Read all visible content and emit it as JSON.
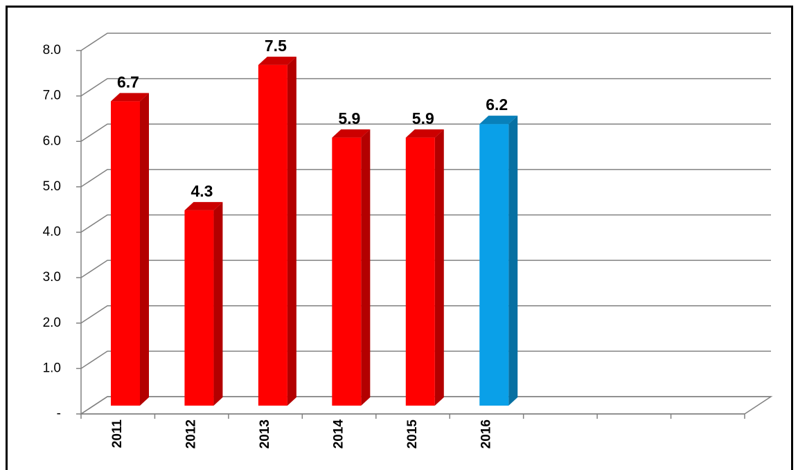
{
  "chart_data": {
    "type": "bar3d",
    "categories": [
      "2011",
      "2012",
      "2013",
      "2014",
      "2015",
      "2016",
      null,
      null,
      null
    ],
    "values": [
      6.7,
      4.3,
      7.5,
      5.9,
      5.9,
      6.2,
      null,
      null,
      null
    ],
    "colors": [
      "#ff0000",
      "#ff0000",
      "#ff0000",
      "#ff0000",
      "#ff0000",
      "#0aa0e8",
      null,
      null,
      null
    ],
    "ylim": [
      0,
      8
    ],
    "yticks": [
      {
        "value": 0,
        "label": "-"
      },
      {
        "value": 1,
        "label": "1.0"
      },
      {
        "value": 2,
        "label": "2.0"
      },
      {
        "value": 3,
        "label": "3.0"
      },
      {
        "value": 4,
        "label": "4.0"
      },
      {
        "value": 5,
        "label": "5.0"
      },
      {
        "value": 6,
        "label": "6.0"
      },
      {
        "value": 7,
        "label": "7.0"
      },
      {
        "value": 8,
        "label": "8.0"
      }
    ],
    "grid": true
  }
}
